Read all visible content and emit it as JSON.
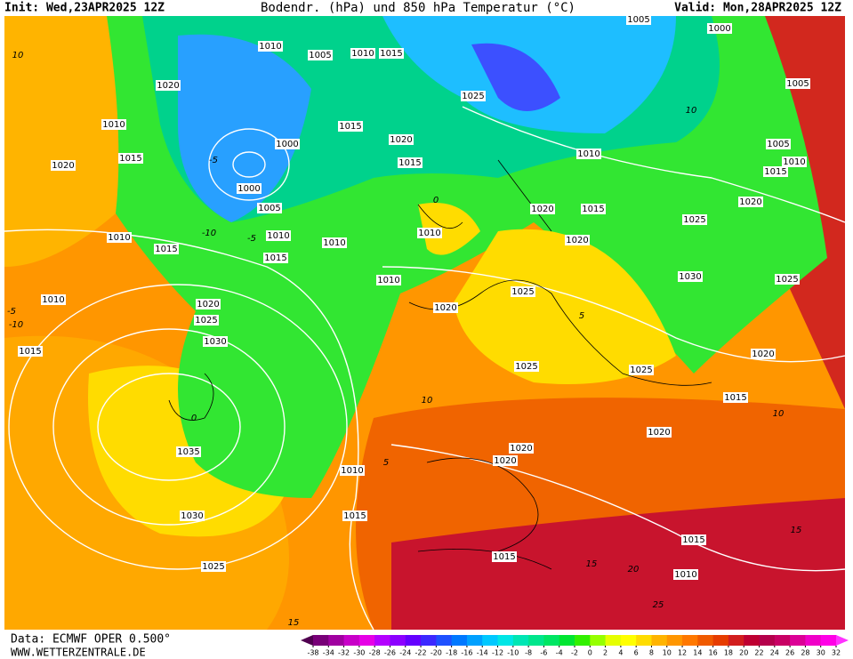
{
  "header": {
    "init": "Init: Wed,23APR2025 12Z",
    "title": "Bodendr. (hPa) und 850 hPa Temperatur (°C)",
    "valid": "Valid: Mon,28APR2025 12Z"
  },
  "footer": {
    "source": "Data: ECMWF OPER 0.500°",
    "website": "WWW.WETTERZENTRALE.DE"
  },
  "isobar_labels": [
    "1010",
    "1005",
    "1010",
    "1015",
    "1005",
    "1000",
    "1020",
    "1005",
    "1010",
    "1025",
    "1015",
    "1015",
    "1020",
    "1000",
    "1010",
    "1020",
    "1015",
    "1005",
    "1010",
    "1000",
    "1015",
    "1020",
    "1005",
    "1020",
    "1015",
    "1025",
    "1010",
    "1015",
    "1010",
    "1010",
    "1010",
    "1020",
    "1015",
    "1010",
    "1010",
    "1030",
    "1025",
    "1025",
    "1020",
    "1020",
    "1025",
    "1030",
    "1015",
    "1025",
    "1025",
    "1020",
    "1015",
    "1020",
    "1035",
    "1020",
    "1020",
    "1010",
    "1030",
    "1015",
    "1015",
    "1015",
    "1025",
    "1010"
  ],
  "temperature_labels": [
    "10",
    "-5",
    "-10",
    "0",
    "-5",
    "-10",
    "5",
    "10",
    "5",
    "10",
    "0",
    "10",
    "15",
    "15",
    "20",
    "25",
    "15",
    "-5"
  ],
  "colorbar": {
    "ticks": [
      -38,
      -34,
      -32,
      -30,
      -28,
      -26,
      -24,
      -22,
      -20,
      -18,
      -16,
      -14,
      -12,
      -10,
      -8,
      -6,
      -4,
      -2,
      0,
      2,
      4,
      6,
      8,
      10,
      12,
      14,
      16,
      18,
      20,
      22,
      24,
      26,
      28,
      30,
      32
    ],
    "colors": [
      "#500050",
      "#780078",
      "#a000a0",
      "#c800c8",
      "#e600e6",
      "#b400ff",
      "#8c00ff",
      "#6400ff",
      "#3c28ff",
      "#1e50ff",
      "#0078ff",
      "#00a0ff",
      "#00c8ff",
      "#00e6e6",
      "#00e6b4",
      "#00e68c",
      "#00e664",
      "#00e632",
      "#32f000",
      "#96ff00",
      "#e6ff00",
      "#ffff00",
      "#ffdc00",
      "#ffb400",
      "#ff9600",
      "#ff7800",
      "#f05a00",
      "#e63c00",
      "#d21e1e",
      "#be0032",
      "#b4004b",
      "#c80064",
      "#dc0096",
      "#f000c8",
      "#ff00e6",
      "#ff32ff"
    ]
  }
}
